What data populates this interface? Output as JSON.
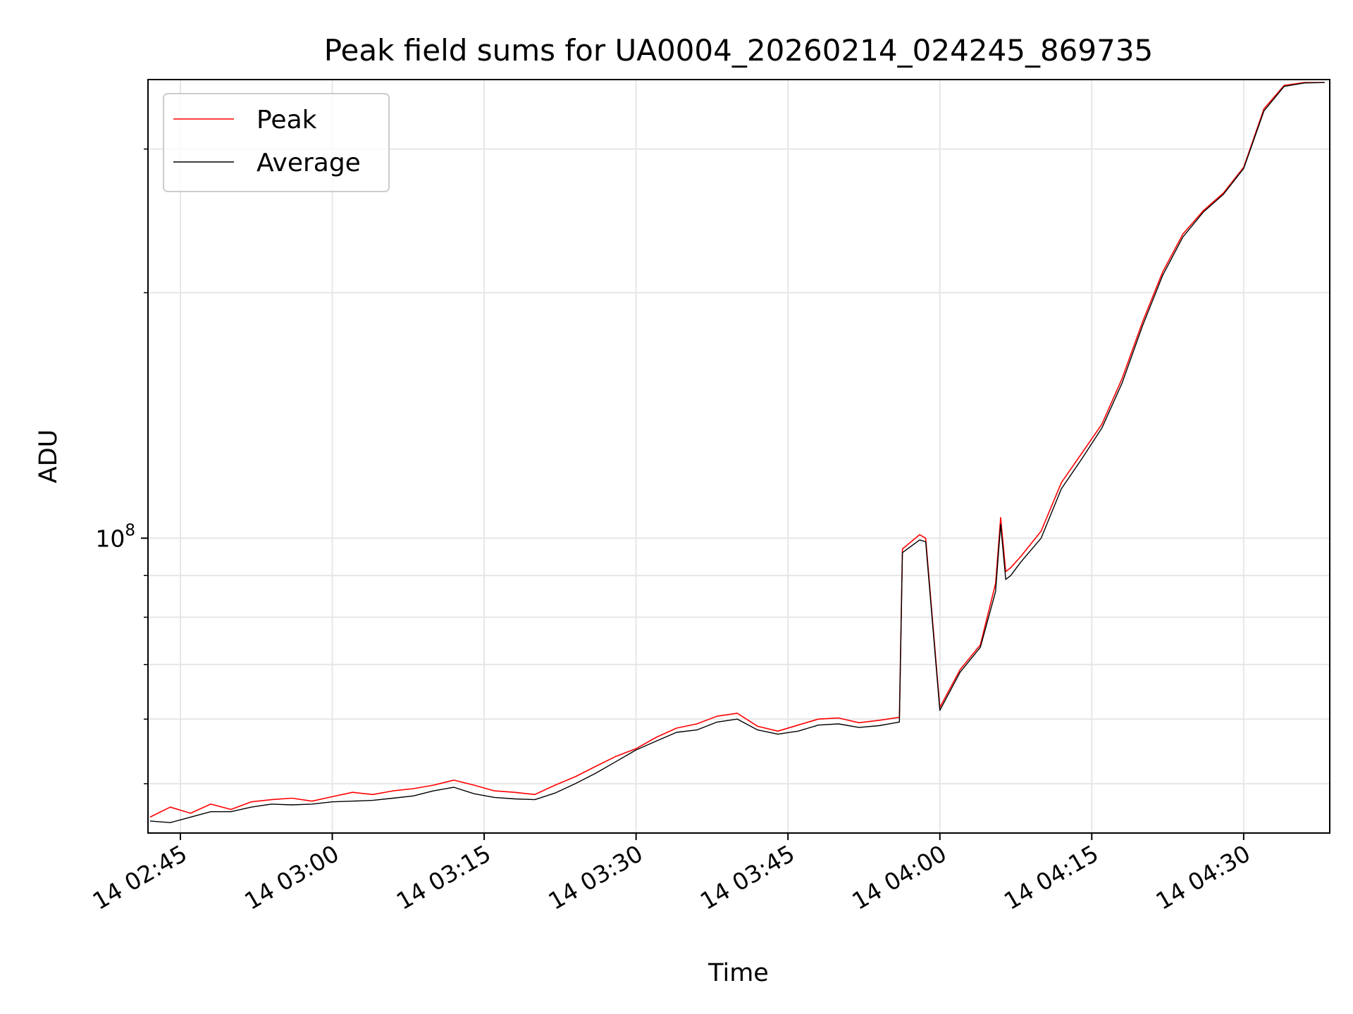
{
  "chart_data": {
    "type": "line",
    "title": "Peak field sums for UA0004_20260214_024245_869735",
    "xlabel": "Time",
    "ylabel": "ADU",
    "y_scale": "log",
    "grid": true,
    "legend_position": "top-left",
    "x_unit": "minutes past 14 Feb 2026 00:00 UTC",
    "xlim": [
      161.8,
      278.5
    ],
    "ylim": [
      43500000,
      365000000
    ],
    "x_ticks": [
      {
        "value": 165,
        "label": "14 02:45"
      },
      {
        "value": 180,
        "label": "14 03:00"
      },
      {
        "value": 195,
        "label": "14 03:15"
      },
      {
        "value": 210,
        "label": "14 03:30"
      },
      {
        "value": 225,
        "label": "14 03:45"
      },
      {
        "value": 240,
        "label": "14 04:00"
      },
      {
        "value": 255,
        "label": "14 04:15"
      },
      {
        "value": 270,
        "label": "14 04:30"
      }
    ],
    "y_major_ticks": [
      {
        "value": 100000000,
        "base": "10",
        "exponent": "8"
      }
    ],
    "y_minor_ticks": [
      50000000,
      60000000,
      70000000,
      80000000,
      90000000,
      200000000,
      300000000
    ],
    "series": [
      {
        "name": "Peak",
        "color": "#ff0000",
        "x": [
          162,
          164,
          166,
          168,
          170,
          172,
          174,
          176,
          178,
          180,
          182,
          184,
          186,
          188,
          190,
          192,
          194,
          196,
          198,
          200,
          202,
          204,
          206,
          208,
          210,
          212,
          214,
          216,
          218,
          220,
          222,
          224,
          226,
          228,
          230,
          232,
          234,
          236,
          236.3,
          238,
          238.6,
          240,
          242,
          244,
          245.5,
          246,
          246.5,
          247,
          248,
          250,
          252,
          254,
          256,
          258,
          260,
          262,
          264,
          266,
          268,
          270,
          272,
          274,
          276,
          278
        ],
        "y": [
          45500000,
          46800000,
          46000000,
          47200000,
          46500000,
          47500000,
          47800000,
          48000000,
          47600000,
          48200000,
          48800000,
          48500000,
          49000000,
          49300000,
          49800000,
          50500000,
          49800000,
          49000000,
          48800000,
          48500000,
          49800000,
          51000000,
          52500000,
          54000000,
          55200000,
          57000000,
          58500000,
          59200000,
          60500000,
          61000000,
          58800000,
          58000000,
          59000000,
          60000000,
          60200000,
          59400000,
          59800000,
          60300000,
          97000000,
          101000000,
          100000000,
          62000000,
          69000000,
          74000000,
          88000000,
          106000000,
          91000000,
          92000000,
          95000000,
          102000000,
          117000000,
          127000000,
          138000000,
          157000000,
          184000000,
          212000000,
          236000000,
          252000000,
          265000000,
          285000000,
          336000000,
          359000000,
          362000000,
          362000000
        ]
      },
      {
        "name": "Average",
        "color": "#000000",
        "x": [
          162,
          164,
          166,
          168,
          170,
          172,
          174,
          176,
          178,
          180,
          182,
          184,
          186,
          188,
          190,
          192,
          194,
          196,
          198,
          200,
          202,
          204,
          206,
          208,
          210,
          212,
          214,
          216,
          218,
          220,
          222,
          224,
          226,
          228,
          230,
          232,
          234,
          236,
          236.3,
          238,
          238.6,
          240,
          242,
          244,
          245.5,
          246,
          246.5,
          247,
          248,
          250,
          252,
          254,
          256,
          258,
          260,
          262,
          264,
          266,
          268,
          270,
          272,
          274,
          276,
          278
        ],
        "y": [
          45000000,
          44800000,
          45500000,
          46200000,
          46200000,
          46800000,
          47200000,
          47100000,
          47200000,
          47500000,
          47600000,
          47700000,
          48000000,
          48300000,
          49000000,
          49500000,
          48600000,
          48100000,
          47900000,
          47800000,
          48700000,
          50000000,
          51500000,
          53200000,
          55000000,
          56400000,
          57800000,
          58200000,
          59500000,
          60000000,
          58200000,
          57500000,
          58000000,
          59000000,
          59200000,
          58600000,
          58900000,
          59500000,
          96000000,
          99500000,
          99000000,
          61500000,
          68500000,
          73500000,
          86000000,
          104000000,
          89000000,
          90000000,
          93500000,
          100000000,
          115000000,
          125000000,
          136500000,
          155000000,
          182000000,
          210000000,
          234000000,
          251000000,
          264000000,
          284000000,
          334000000,
          358000000,
          361500000,
          362000000
        ]
      }
    ]
  }
}
